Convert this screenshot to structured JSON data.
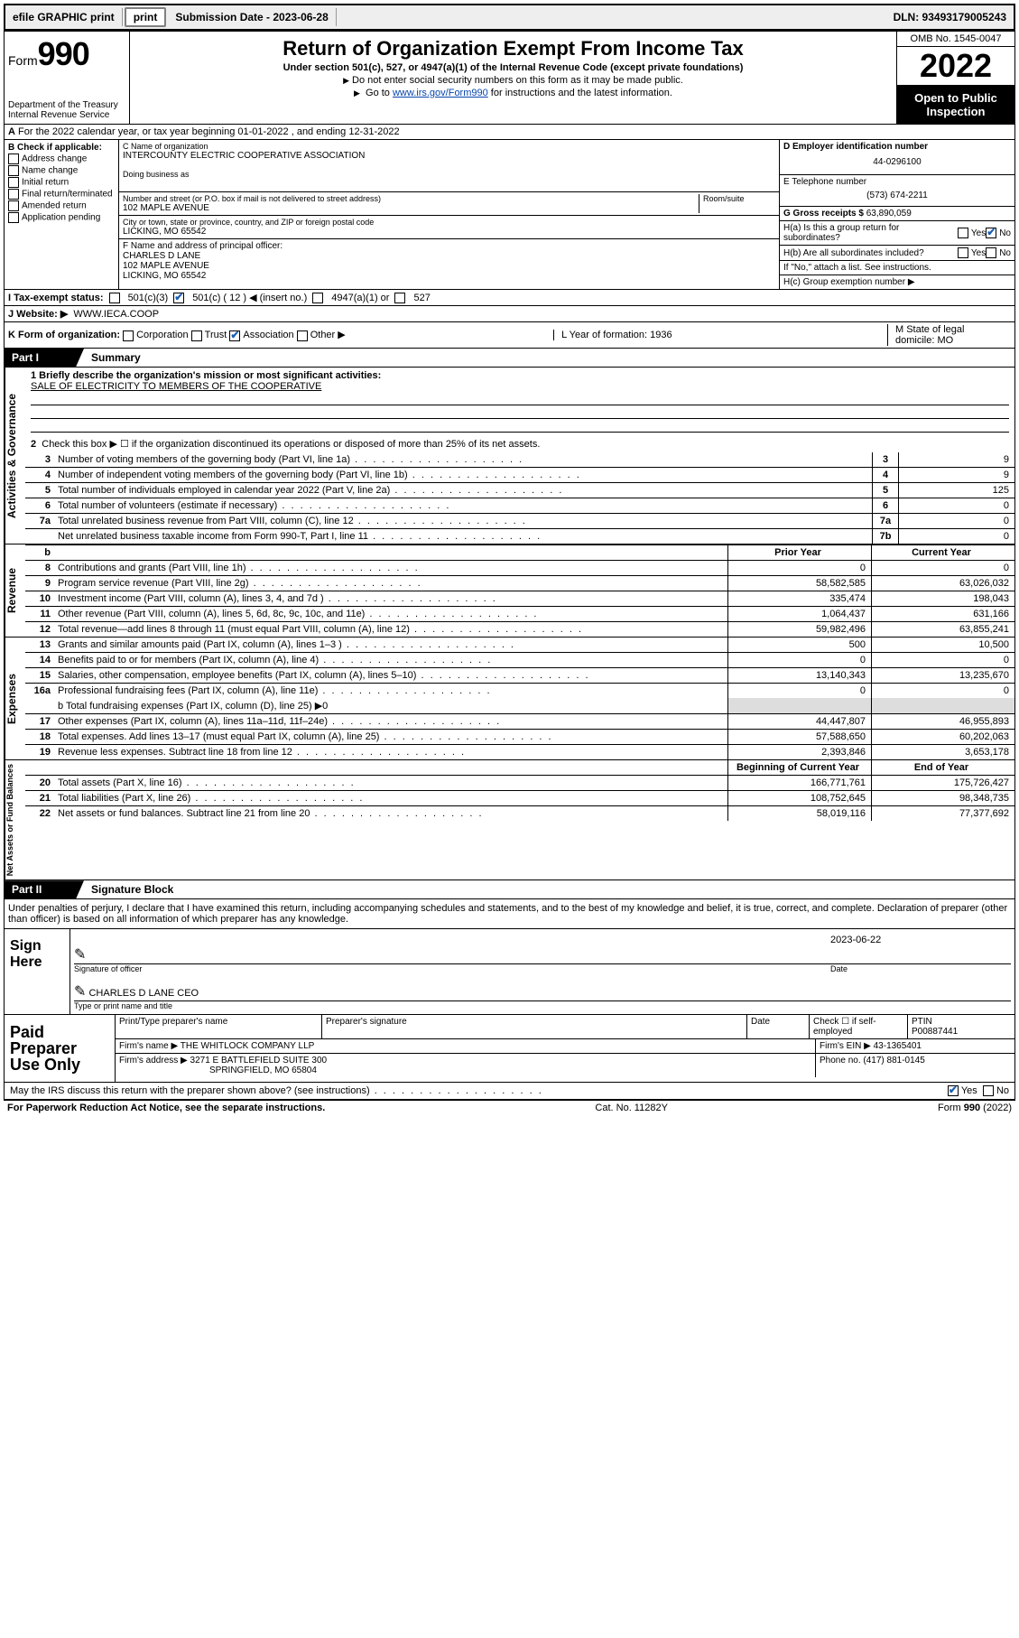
{
  "topbar": {
    "efile": "efile GRAPHIC print",
    "submission": "Submission Date - 2023-06-28",
    "dln": "DLN: 93493179005243"
  },
  "header": {
    "form_label": "Form",
    "form_number": "990",
    "dept": "Department of the Treasury",
    "irs": "Internal Revenue Service",
    "title": "Return of Organization Exempt From Income Tax",
    "subtitle": "Under section 501(c), 527, or 4947(a)(1) of the Internal Revenue Code (except private foundations)",
    "note1": "Do not enter social security numbers on this form as it may be made public.",
    "note2_pre": "Go to ",
    "note2_link": "www.irs.gov/Form990",
    "note2_post": " for instructions and the latest information.",
    "omb": "OMB No. 1545-0047",
    "year": "2022",
    "inspect": "Open to Public Inspection"
  },
  "rowA": "For the 2022 calendar year, or tax year beginning 01-01-2022   , and ending 12-31-2022",
  "colB": {
    "label": "B Check if applicable:",
    "opts": [
      "Address change",
      "Name change",
      "Initial return",
      "Final return/terminated",
      "Amended return",
      "Application pending"
    ]
  },
  "cde": {
    "c_label": "C Name of organization",
    "c_name": "INTERCOUNTY ELECTRIC COOPERATIVE ASSOCIATION",
    "dba_label": "Doing business as",
    "addr_label": "Number and street (or P.O. box if mail is not delivered to street address)",
    "room_label": "Room/suite",
    "addr": "102 MAPLE AVENUE",
    "city_label": "City or town, state or province, country, and ZIP or foreign postal code",
    "city": "LICKING, MO  65542",
    "f_label": "F Name and address of principal officer:",
    "f_name": "CHARLES D LANE",
    "f_addr1": "102 MAPLE AVENUE",
    "f_addr2": "LICKING, MO  65542"
  },
  "right": {
    "d_label": "D Employer identification number",
    "d_val": "44-0296100",
    "e_label": "E Telephone number",
    "e_val": "(573) 674-2211",
    "g_label": "G Gross receipts $",
    "g_val": "63,890,059",
    "ha_label": "H(a)  Is this a group return for subordinates?",
    "hb_label": "H(b)  Are all subordinates included?",
    "h_note": "If \"No,\" attach a list. See instructions.",
    "hc_label": "H(c)  Group exemption number ▶"
  },
  "lineI": {
    "label": "I  Tax-exempt status:",
    "o1": "501(c)(3)",
    "o2a": "501(c) ( 12 ) ◀ (insert no.)",
    "o3": "4947(a)(1) or",
    "o4": "527"
  },
  "lineJ": {
    "label": "J  Website: ▶",
    "val": "WWW.IECA.COOP"
  },
  "lineK": {
    "label": "K Form of organization:",
    "opts": [
      "Corporation",
      "Trust",
      "Association",
      "Other ▶"
    ],
    "l_label": "L Year of formation: 1936",
    "m_label": "M State of legal domicile: MO"
  },
  "part1": {
    "tab": "Part I",
    "title": "Summary"
  },
  "summary": {
    "l1_label": "1  Briefly describe the organization's mission or most significant activities:",
    "l1_val": "SALE OF ELECTRICITY TO MEMBERS OF THE COOPERATIVE",
    "l2": "Check this box ▶ ☐  if the organization discontinued its operations or disposed of more than 25% of its net assets.",
    "lines_ag": [
      {
        "n": "3",
        "t": "Number of voting members of the governing body (Part VI, line 1a)",
        "r": "3",
        "v": "9"
      },
      {
        "n": "4",
        "t": "Number of independent voting members of the governing body (Part VI, line 1b)",
        "r": "4",
        "v": "9"
      },
      {
        "n": "5",
        "t": "Total number of individuals employed in calendar year 2022 (Part V, line 2a)",
        "r": "5",
        "v": "125"
      },
      {
        "n": "6",
        "t": "Total number of volunteers (estimate if necessary)",
        "r": "6",
        "v": "0"
      },
      {
        "n": "7a",
        "t": "Total unrelated business revenue from Part VIII, column (C), line 12",
        "r": "7a",
        "v": "0"
      },
      {
        "n": "",
        "t": "Net unrelated business taxable income from Form 990-T, Part I, line 11",
        "r": "7b",
        "v": "0"
      }
    ],
    "col_head_prior": "Prior Year",
    "col_head_curr": "Current Year",
    "rev": [
      {
        "n": "8",
        "t": "Contributions and grants (Part VIII, line 1h)",
        "p": "0",
        "c": "0"
      },
      {
        "n": "9",
        "t": "Program service revenue (Part VIII, line 2g)",
        "p": "58,582,585",
        "c": "63,026,032"
      },
      {
        "n": "10",
        "t": "Investment income (Part VIII, column (A), lines 3, 4, and 7d )",
        "p": "335,474",
        "c": "198,043"
      },
      {
        "n": "11",
        "t": "Other revenue (Part VIII, column (A), lines 5, 6d, 8c, 9c, 10c, and 11e)",
        "p": "1,064,437",
        "c": "631,166"
      },
      {
        "n": "12",
        "t": "Total revenue—add lines 8 through 11 (must equal Part VIII, column (A), line 12)",
        "p": "59,982,496",
        "c": "63,855,241"
      }
    ],
    "exp": [
      {
        "n": "13",
        "t": "Grants and similar amounts paid (Part IX, column (A), lines 1–3 )",
        "p": "500",
        "c": "10,500"
      },
      {
        "n": "14",
        "t": "Benefits paid to or for members (Part IX, column (A), line 4)",
        "p": "0",
        "c": "0"
      },
      {
        "n": "15",
        "t": "Salaries, other compensation, employee benefits (Part IX, column (A), lines 5–10)",
        "p": "13,140,343",
        "c": "13,235,670"
      },
      {
        "n": "16a",
        "t": "Professional fundraising fees (Part IX, column (A), line 11e)",
        "p": "0",
        "c": "0"
      }
    ],
    "l16b": "b  Total fundraising expenses (Part IX, column (D), line 25) ▶0",
    "exp2": [
      {
        "n": "17",
        "t": "Other expenses (Part IX, column (A), lines 11a–11d, 11f–24e)",
        "p": "44,447,807",
        "c": "46,955,893"
      },
      {
        "n": "18",
        "t": "Total expenses. Add lines 13–17 (must equal Part IX, column (A), line 25)",
        "p": "57,588,650",
        "c": "60,202,063"
      },
      {
        "n": "19",
        "t": "Revenue less expenses. Subtract line 18 from line 12",
        "p": "2,393,846",
        "c": "3,653,178"
      }
    ],
    "col_head_begin": "Beginning of Current Year",
    "col_head_end": "End of Year",
    "net": [
      {
        "n": "20",
        "t": "Total assets (Part X, line 16)",
        "p": "166,771,761",
        "c": "175,726,427"
      },
      {
        "n": "21",
        "t": "Total liabilities (Part X, line 26)",
        "p": "108,752,645",
        "c": "98,348,735"
      },
      {
        "n": "22",
        "t": "Net assets or fund balances. Subtract line 21 from line 20",
        "p": "58,019,116",
        "c": "77,377,692"
      }
    ]
  },
  "side_labels": {
    "ag": "Activities & Governance",
    "rev": "Revenue",
    "exp": "Expenses",
    "net": "Net Assets or Fund Balances"
  },
  "part2": {
    "tab": "Part II",
    "title": "Signature Block"
  },
  "sig": {
    "declaration": "Under penalties of perjury, I declare that I have examined this return, including accompanying schedules and statements, and to the best of my knowledge and belief, it is true, correct, and complete. Declaration of preparer (other than officer) is based on all information of which preparer has any knowledge.",
    "sign_here": "Sign Here",
    "date": "2023-06-22",
    "sig_label": "Signature of officer",
    "date_label": "Date",
    "officer": "CHARLES D LANE CEO",
    "officer_label": "Type or print name and title",
    "paid": "Paid Preparer Use Only",
    "h1": "Print/Type preparer's name",
    "h2": "Preparer's signature",
    "h3": "Date",
    "h4": "Check ☐ if self-employed",
    "h5_label": "PTIN",
    "h5": "P00887441",
    "firm_name_label": "Firm's name  ▶",
    "firm_name": "THE WHITLOCK COMPANY LLP",
    "firm_ein_label": "Firm's EIN ▶",
    "firm_ein": "43-1365401",
    "firm_addr_label": "Firm's address ▶",
    "firm_addr1": "3271 E BATTLEFIELD SUITE 300",
    "firm_addr2": "SPRINGFIELD, MO  65804",
    "phone_label": "Phone no.",
    "phone": "(417) 881-0145",
    "may_discuss": "May the IRS discuss this return with the preparer shown above? (see instructions)"
  },
  "footer": {
    "left": "For Paperwork Reduction Act Notice, see the separate instructions.",
    "mid": "Cat. No. 11282Y",
    "right": "Form 990 (2022)"
  },
  "yn": {
    "yes": "Yes",
    "no": "No"
  }
}
